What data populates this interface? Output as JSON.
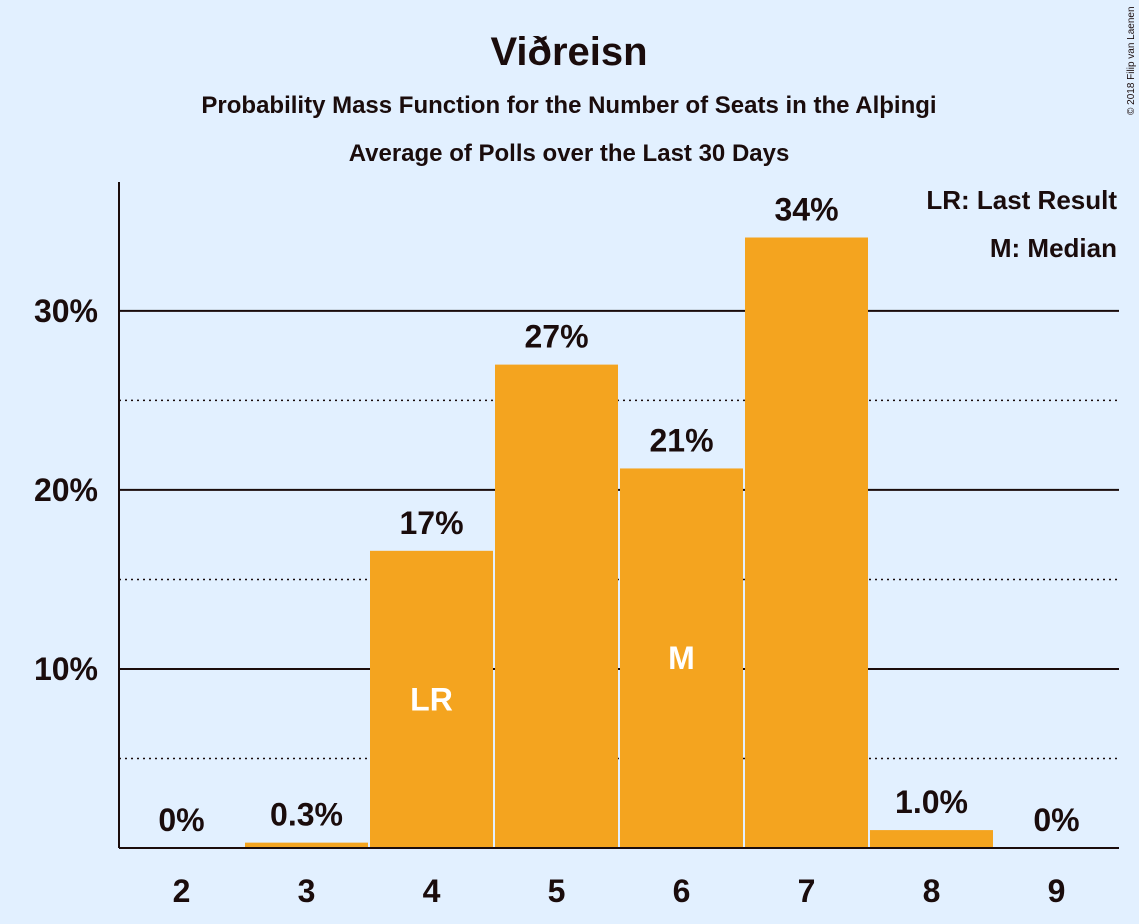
{
  "title": "Viðreisn",
  "subtitle1": "Probability Mass Function for the Number of Seats in the Alþingi",
  "subtitle2": "Average of Polls over the Last 30 Days",
  "credit": "© 2018 Filip van Laenen",
  "legend": [
    "LR: Last Result",
    "M: Median"
  ],
  "colors": {
    "bar": "#f4a41f",
    "background": "#e2f0ff",
    "text": "#1a0c0c"
  },
  "chart_data": {
    "type": "bar",
    "categories": [
      "2",
      "3",
      "4",
      "5",
      "6",
      "7",
      "8",
      "9"
    ],
    "values": [
      0,
      0.3,
      16.6,
      27,
      21.2,
      34.1,
      1.0,
      0
    ],
    "data_labels": [
      "0%",
      "0.3%",
      "17%",
      "27%",
      "21%",
      "34%",
      "1.0%",
      "0%"
    ],
    "bar_markers": {
      "4": "LR",
      "6": "M"
    },
    "ylim": [
      0,
      37.2
    ],
    "yticks": [
      10,
      20,
      30
    ],
    "ytick_labels": [
      "10%",
      "20%",
      "30%"
    ],
    "minor_gridlines": [
      5,
      15,
      25
    ],
    "grid": true,
    "legend_position": "top-right"
  }
}
